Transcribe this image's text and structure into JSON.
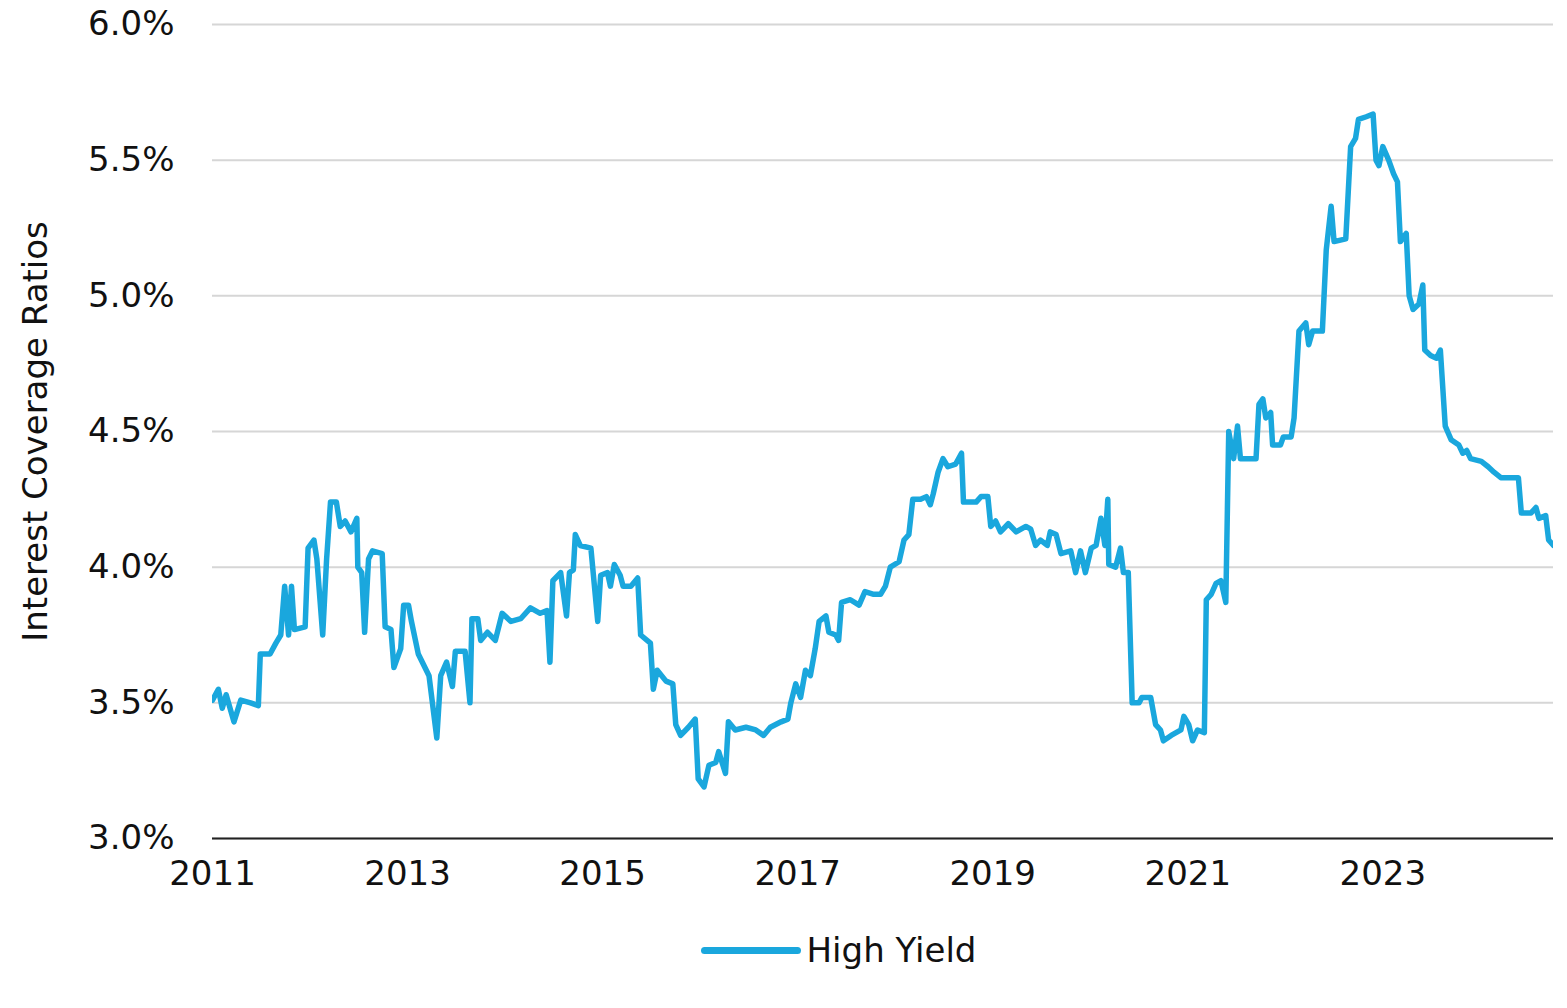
{
  "chart_data": {
    "type": "line",
    "y_label": "Interest Coverage Ratios",
    "x": [
      2011.0,
      2011.06,
      2011.1,
      2011.14,
      2011.22,
      2011.29,
      2011.39,
      2011.47,
      2011.49,
      2011.59,
      2011.65,
      2011.7,
      2011.74,
      2011.78,
      2011.81,
      2011.84,
      2011.95,
      2011.98,
      2012.04,
      2012.07,
      2012.13,
      2012.17,
      2012.21,
      2012.27,
      2012.31,
      2012.36,
      2012.42,
      2012.48,
      2012.49,
      2012.53,
      2012.56,
      2012.6,
      2012.64,
      2012.74,
      2012.77,
      2012.83,
      2012.86,
      2012.93,
      2012.96,
      2013.01,
      2013.04,
      2013.11,
      2013.22,
      2013.3,
      2013.34,
      2013.4,
      2013.46,
      2013.49,
      2013.59,
      2013.64,
      2013.66,
      2013.72,
      2013.75,
      2013.82,
      2013.9,
      2013.97,
      2014.06,
      2014.16,
      2014.26,
      2014.36,
      2014.43,
      2014.46,
      2014.49,
      2014.57,
      2014.63,
      2014.66,
      2014.7,
      2014.72,
      2014.77,
      2014.88,
      2014.95,
      2014.98,
      2015.05,
      2015.08,
      2015.12,
      2015.18,
      2015.21,
      2015.29,
      2015.36,
      2015.39,
      2015.49,
      2015.52,
      2015.56,
      2015.65,
      2015.72,
      2015.75,
      2015.8,
      2015.88,
      2015.95,
      2015.98,
      2016.04,
      2016.09,
      2016.16,
      2016.19,
      2016.26,
      2016.29,
      2016.36,
      2016.47,
      2016.57,
      2016.65,
      2016.72,
      2016.83,
      2016.9,
      2016.93,
      2016.98,
      2017.03,
      2017.08,
      2017.13,
      2017.18,
      2017.22,
      2017.29,
      2017.32,
      2017.39,
      2017.42,
      2017.45,
      2017.54,
      2017.63,
      2017.69,
      2017.78,
      2017.85,
      2017.9,
      2017.95,
      2018.04,
      2018.09,
      2018.14,
      2018.18,
      2018.26,
      2018.32,
      2018.36,
      2018.39,
      2018.44,
      2018.49,
      2018.54,
      2018.62,
      2018.68,
      2018.7,
      2018.83,
      2018.88,
      2018.95,
      2018.98,
      2019.03,
      2019.08,
      2019.16,
      2019.24,
      2019.34,
      2019.39,
      2019.44,
      2019.49,
      2019.56,
      2019.59,
      2019.65,
      2019.7,
      2019.8,
      2019.85,
      2019.9,
      2019.95,
      2020.01,
      2020.06,
      2020.11,
      2020.15,
      2020.18,
      2020.19,
      2020.26,
      2020.31,
      2020.34,
      2020.39,
      2020.43,
      2020.5,
      2020.53,
      2020.62,
      2020.67,
      2020.72,
      2020.75,
      2020.83,
      2020.93,
      2020.96,
      2021.01,
      2021.05,
      2021.1,
      2021.17,
      2021.19,
      2021.24,
      2021.29,
      2021.34,
      2021.39,
      2021.42,
      2021.47,
      2021.51,
      2021.54,
      2021.7,
      2021.73,
      2021.77,
      2021.8,
      2021.85,
      2021.87,
      2021.95,
      2021.98,
      2022.06,
      2022.09,
      2022.14,
      2022.21,
      2022.24,
      2022.28,
      2022.38,
      2022.42,
      2022.47,
      2022.5,
      2022.62,
      2022.67,
      2022.72,
      2022.75,
      2022.83,
      2022.9,
      2022.93,
      2022.96,
      2023.0,
      2023.06,
      2023.11,
      2023.15,
      2023.18,
      2023.24,
      2023.27,
      2023.31,
      2023.37,
      2023.41,
      2023.43,
      2023.49,
      2023.55,
      2023.59,
      2023.64,
      2023.7,
      2023.78,
      2023.82,
      2023.86,
      2023.9,
      2024.01,
      2024.08,
      2024.14,
      2024.21,
      2024.31,
      2024.39,
      2024.42,
      2024.52,
      2024.57,
      2024.6,
      2024.67,
      2024.7,
      2024.75
    ],
    "series": [
      {
        "name": "High Yield",
        "color": "#1aa7dd",
        "values": [
          3.51,
          3.55,
          3.48,
          3.53,
          3.43,
          3.51,
          3.5,
          3.49,
          3.68,
          3.68,
          3.72,
          3.75,
          3.93,
          3.75,
          3.93,
          3.77,
          3.78,
          4.07,
          4.1,
          4.03,
          3.75,
          4.03,
          4.24,
          4.24,
          4.15,
          4.17,
          4.13,
          4.18,
          4.0,
          3.98,
          3.76,
          4.03,
          4.06,
          4.05,
          3.78,
          3.77,
          3.63,
          3.7,
          3.86,
          3.86,
          3.8,
          3.68,
          3.6,
          3.37,
          3.6,
          3.65,
          3.56,
          3.69,
          3.69,
          3.5,
          3.81,
          3.81,
          3.73,
          3.76,
          3.73,
          3.83,
          3.8,
          3.81,
          3.85,
          3.83,
          3.84,
          3.65,
          3.95,
          3.98,
          3.82,
          3.98,
          3.99,
          4.12,
          4.08,
          4.07,
          3.8,
          3.97,
          3.98,
          3.93,
          4.01,
          3.97,
          3.93,
          3.93,
          3.96,
          3.75,
          3.72,
          3.55,
          3.62,
          3.58,
          3.57,
          3.42,
          3.38,
          3.41,
          3.44,
          3.22,
          3.19,
          3.27,
          3.28,
          3.32,
          3.24,
          3.43,
          3.4,
          3.41,
          3.4,
          3.38,
          3.41,
          3.43,
          3.44,
          3.5,
          3.57,
          3.52,
          3.62,
          3.6,
          3.7,
          3.8,
          3.82,
          3.76,
          3.75,
          3.73,
          3.87,
          3.88,
          3.86,
          3.91,
          3.9,
          3.9,
          3.93,
          4.0,
          4.02,
          4.1,
          4.12,
          4.25,
          4.25,
          4.26,
          4.23,
          4.27,
          4.35,
          4.4,
          4.37,
          4.38,
          4.42,
          4.24,
          4.24,
          4.26,
          4.26,
          4.15,
          4.17,
          4.13,
          4.16,
          4.13,
          4.15,
          4.14,
          4.08,
          4.1,
          4.08,
          4.13,
          4.12,
          4.05,
          4.06,
          3.98,
          4.06,
          3.98,
          4.07,
          4.08,
          4.18,
          4.08,
          4.25,
          4.01,
          4.0,
          4.07,
          3.98,
          3.98,
          3.5,
          3.5,
          3.52,
          3.52,
          3.42,
          3.4,
          3.36,
          3.38,
          3.4,
          3.45,
          3.42,
          3.36,
          3.4,
          3.39,
          3.88,
          3.9,
          3.94,
          3.95,
          3.87,
          4.5,
          4.4,
          4.52,
          4.4,
          4.4,
          4.6,
          4.62,
          4.55,
          4.57,
          4.45,
          4.45,
          4.48,
          4.48,
          4.55,
          4.87,
          4.9,
          4.82,
          4.87,
          4.87,
          5.17,
          5.33,
          5.2,
          5.21,
          5.55,
          5.58,
          5.65,
          5.66,
          5.67,
          5.5,
          5.48,
          5.55,
          5.5,
          5.45,
          5.42,
          5.2,
          5.23,
          5.0,
          4.95,
          4.97,
          5.04,
          4.8,
          4.78,
          4.77,
          4.8,
          4.52,
          4.47,
          4.45,
          4.42,
          4.43,
          4.4,
          4.39,
          4.37,
          4.35,
          4.33,
          4.33,
          4.33,
          4.2,
          4.2,
          4.22,
          4.18,
          4.19,
          4.1,
          4.08
        ]
      }
    ],
    "xlim": [
      2011,
      2024.75
    ],
    "xticks": [
      2011,
      2013,
      2015,
      2017,
      2019,
      2021,
      2023
    ],
    "ylim": [
      3.0,
      6.0
    ],
    "yticks": [
      {
        "value": 3.0,
        "label": "3.0%"
      },
      {
        "value": 3.5,
        "label": "3.5%"
      },
      {
        "value": 4.0,
        "label": "4.0%"
      },
      {
        "value": 4.5,
        "label": "4.5%"
      },
      {
        "value": 5.0,
        "label": "5.0%"
      },
      {
        "value": 5.5,
        "label": "5.5%"
      },
      {
        "value": 6.0,
        "label": "6.0%"
      }
    ],
    "grid": true,
    "legend": "bottom"
  }
}
